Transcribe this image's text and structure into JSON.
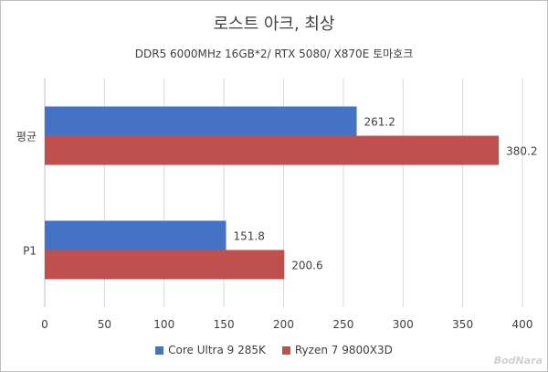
{
  "chart_data": {
    "type": "bar",
    "orientation": "horizontal",
    "title": "로스트 아크, 최상",
    "subtitle": "DDR5 6000MHz 16GB*2/ RTX 5080/ X870E 토마호크",
    "categories": [
      "평균",
      "P1"
    ],
    "series": [
      {
        "name": "Core Ultra 9 285K",
        "color": "#4472c4",
        "values": [
          261.2,
          151.8
        ]
      },
      {
        "name": "Ryzen 7 9800X3D",
        "color": "#c0504d",
        "values": [
          380.2,
          200.6
        ]
      }
    ],
    "data_labels": [
      [
        "261.2",
        "151.8"
      ],
      [
        "380.2",
        "200.6"
      ]
    ],
    "xlim": [
      0,
      400
    ],
    "xticks": [
      0,
      50,
      100,
      150,
      200,
      250,
      300,
      350,
      400
    ],
    "grid": true,
    "legend_position": "bottom"
  },
  "watermark": "BodNara"
}
